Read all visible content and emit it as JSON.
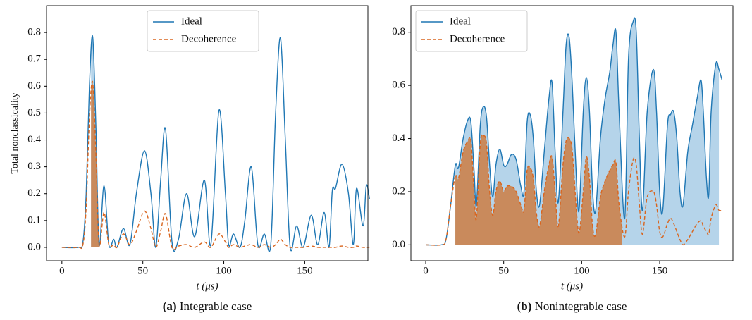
{
  "chart_data": [
    {
      "type": "line",
      "ylabel": "Total nonclassicality",
      "xlabel": "t (μs)",
      "caption_tag": "(a)",
      "caption": "Integrable case",
      "legend": "upper center",
      "xlim": [
        -9.5,
        189
      ],
      "ylim": [
        -0.05,
        0.9
      ],
      "xticks": [
        0,
        50,
        100,
        150
      ],
      "yticks": [
        {
          "value": 0,
          "label": "0.0"
        },
        0.1,
        0.2,
        0.3,
        0.4,
        0.5,
        0.6,
        0.7,
        0.8
      ],
      "x": [
        0,
        10,
        13,
        15,
        17,
        19,
        21,
        23,
        26,
        29,
        32,
        34,
        38,
        42,
        46,
        51,
        55,
        58,
        61,
        64,
        68,
        72,
        77,
        82,
        88,
        92,
        97,
        101,
        103,
        106,
        110,
        113,
        117,
        121,
        125,
        129,
        132,
        135,
        138,
        141,
        145,
        149,
        154,
        158,
        162,
        165,
        167,
        169,
        173,
        177,
        180,
        182,
        186,
        188,
        190
      ],
      "series": [
        {
          "name": "Ideal",
          "color": "#1f77b4",
          "dash": false,
          "fill_color": "#b5d4ea",
          "fill_range": [
            18,
            23
          ],
          "values": [
            0,
            0,
            0.02,
            0.2,
            0.6,
            0.785,
            0.45,
            0.01,
            0.23,
            0.01,
            0.03,
            0,
            0.07,
            0.01,
            0.2,
            0.36,
            0.2,
            0,
            0.25,
            0.44,
            0.02,
            0.03,
            0.2,
            0.04,
            0.25,
            0.01,
            0.51,
            0.2,
            0.01,
            0.05,
            0,
            0.1,
            0.3,
            0.01,
            0.05,
            0.01,
            0.5,
            0.78,
            0.4,
            0,
            0.08,
            0,
            0.12,
            0.01,
            0.13,
            0,
            0.21,
            0.22,
            0.31,
            0.2,
            0.01,
            0.22,
            0.08,
            0.23,
            0.18
          ]
        },
        {
          "name": "Decoherence",
          "color": "#d9651e",
          "dash": true,
          "fill_color": "#c98a5c",
          "fill_range": [
            18,
            23
          ],
          "values": [
            0,
            0,
            0.01,
            0.15,
            0.48,
            0.615,
            0.35,
            0.01,
            0.13,
            0.01,
            0.01,
            0,
            0.05,
            0.01,
            0.06,
            0.135,
            0.07,
            0,
            0.06,
            0.125,
            0,
            0.005,
            0.01,
            0,
            0.02,
            0,
            0.05,
            0.02,
            0,
            0.01,
            0,
            0.005,
            0.01,
            0,
            0.01,
            0,
            0.01,
            0.03,
            0.01,
            0,
            0,
            0,
            0.005,
            0,
            0,
            0,
            0,
            0,
            0.005,
            0,
            0,
            0.005,
            0,
            0,
            0
          ]
        }
      ]
    },
    {
      "type": "line",
      "xlabel": "t (μs)",
      "caption_tag": "(b)",
      "caption": "Nonintegrable case",
      "legend": "upper left",
      "xlim": [
        -9.5,
        197
      ],
      "ylim": [
        -0.06,
        0.9
      ],
      "xticks": [
        0,
        50,
        100,
        150
      ],
      "yticks": [
        {
          "value": 0,
          "label": "0.0"
        },
        0.2,
        0.4,
        0.6,
        0.8
      ],
      "x": [
        0,
        10,
        13,
        16,
        19,
        21,
        24,
        27,
        29,
        31,
        32.5,
        35,
        37,
        39,
        41,
        43,
        45,
        47.5,
        50,
        52,
        55,
        58,
        61,
        63,
        65,
        67,
        69,
        71,
        73,
        76,
        79,
        81,
        83,
        85,
        88,
        90,
        92,
        94,
        97,
        98.6,
        101,
        103,
        105,
        107,
        109,
        112,
        115,
        118,
        120,
        122,
        124,
        127.6,
        130,
        133,
        135,
        137,
        139,
        142,
        146,
        148,
        150,
        152,
        155,
        157,
        159,
        161,
        163,
        165,
        168,
        171,
        174,
        176.5,
        178,
        180,
        181.5,
        183,
        186,
        188,
        190
      ],
      "series": [
        {
          "name": "Ideal",
          "color": "#1f77b4",
          "dash": false,
          "fill_color": "#b5d4ea",
          "fill_range": [
            19,
            188
          ],
          "values": [
            0,
            0,
            0.02,
            0.15,
            0.3,
            0.29,
            0.4,
            0.47,
            0.46,
            0.28,
            0.15,
            0.45,
            0.52,
            0.48,
            0.3,
            0.18,
            0.3,
            0.36,
            0.3,
            0.3,
            0.34,
            0.32,
            0.22,
            0.2,
            0.46,
            0.49,
            0.4,
            0.2,
            0.15,
            0.35,
            0.55,
            0.61,
            0.35,
            0.16,
            0.5,
            0.75,
            0.78,
            0.6,
            0.2,
            0.15,
            0.5,
            0.63,
            0.5,
            0.2,
            0.13,
            0.4,
            0.55,
            0.65,
            0.75,
            0.8,
            0.5,
            0.1,
            0.7,
            0.84,
            0.8,
            0.4,
            0.13,
            0.5,
            0.66,
            0.5,
            0.2,
            0.13,
            0.45,
            0.49,
            0.5,
            0.4,
            0.2,
            0.15,
            0.35,
            0.45,
            0.55,
            0.62,
            0.5,
            0.25,
            0.19,
            0.5,
            0.68,
            0.66,
            0.62
          ]
        },
        {
          "name": "Decoherence",
          "color": "#d9651e",
          "dash": true,
          "fill_color": "#c98a5c",
          "fill_range": [
            19,
            126
          ],
          "values": [
            0,
            0,
            0.02,
            0.15,
            0.26,
            0.25,
            0.35,
            0.39,
            0.39,
            0.2,
            0.1,
            0.38,
            0.41,
            0.38,
            0.2,
            0.11,
            0.2,
            0.24,
            0.2,
            0.22,
            0.22,
            0.2,
            0.15,
            0.13,
            0.28,
            0.29,
            0.25,
            0.12,
            0.07,
            0.2,
            0.3,
            0.33,
            0.2,
            0.07,
            0.3,
            0.39,
            0.4,
            0.35,
            0.1,
            0.05,
            0.2,
            0.33,
            0.25,
            0.07,
            0.04,
            0.18,
            0.24,
            0.28,
            0.3,
            0.31,
            0.15,
            0.03,
            0.2,
            0.32,
            0.3,
            0.15,
            0.04,
            0.18,
            0.2,
            0.15,
            0.05,
            0.03,
            0.08,
            0.1,
            0.08,
            0.05,
            0.02,
            0,
            0.02,
            0.05,
            0.08,
            0.09,
            0.07,
            0.05,
            0.04,
            0.1,
            0.15,
            0.13,
            0.13
          ]
        }
      ]
    }
  ]
}
